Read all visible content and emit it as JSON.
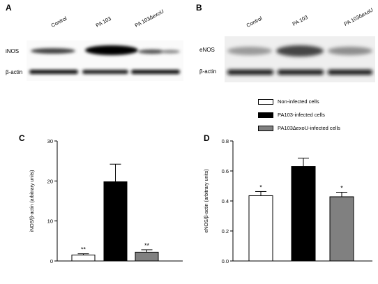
{
  "panels": {
    "a": {
      "letter": "A",
      "lanes": [
        "Control",
        "PA 103",
        "PA 103∆exoU"
      ],
      "rows": [
        "iNOS",
        "β-actin"
      ]
    },
    "b": {
      "letter": "B",
      "lanes": [
        "Control",
        "PA 103",
        "PA 103∆exoU"
      ],
      "rows": [
        "eNOS",
        "β-actin"
      ]
    }
  },
  "legend": [
    {
      "label": "Non-infected cells",
      "color": "#ffffff"
    },
    {
      "label": "PA103-infected cells",
      "color": "#000000"
    },
    {
      "label": "PA103∆exoU-infected cells",
      "color": "#808080"
    }
  ],
  "chart_data": [
    {
      "letter": "C",
      "type": "bar",
      "categories": [
        "Non-infected cells",
        "PA103-infected cells",
        "PA103∆exoU-infected cells"
      ],
      "values": [
        1.5,
        19.8,
        2.2
      ],
      "errors": [
        0.3,
        4.4,
        0.6
      ],
      "annotations": [
        "**",
        "",
        "**"
      ],
      "colors": [
        "#ffffff",
        "#000000",
        "#808080"
      ],
      "ylabel": "iNOS/β-actin (arbitrary units)",
      "ylim": [
        0,
        30
      ],
      "yticks": [
        0,
        10,
        20,
        30
      ],
      "ytick_labels": [
        "0",
        "10",
        "20",
        "30"
      ]
    },
    {
      "letter": "D",
      "type": "bar",
      "categories": [
        "Non-infected cells",
        "PA103-infected cells",
        "PA103∆exoU-infected cells"
      ],
      "values": [
        0.435,
        0.63,
        0.428
      ],
      "errors": [
        0.028,
        0.055,
        0.03
      ],
      "annotations": [
        "*",
        "",
        "*"
      ],
      "colors": [
        "#ffffff",
        "#000000",
        "#808080"
      ],
      "ylabel": "eNOS/β-actin (arbitrary units)",
      "ylim": [
        0,
        0.8
      ],
      "yticks": [
        0,
        0.2,
        0.4,
        0.6,
        0.8
      ],
      "ytick_labels": [
        "0.0",
        "0.2",
        "0.4",
        "0.6",
        "0.8"
      ]
    }
  ]
}
